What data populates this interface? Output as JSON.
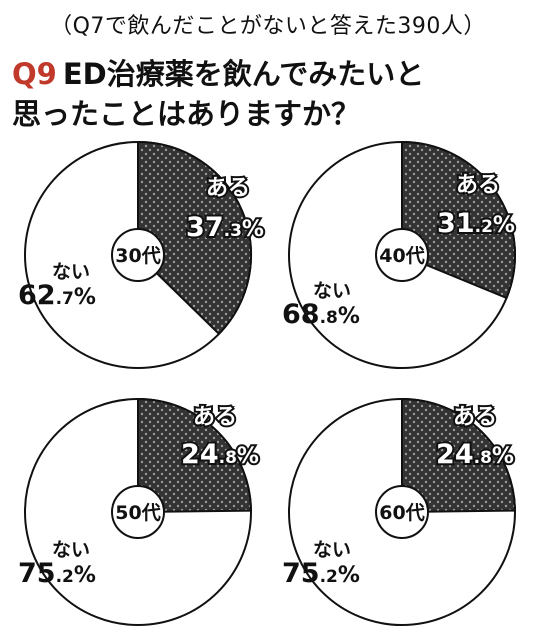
{
  "subtitle": "（Q7で飲んだことがないと答えた390人）",
  "question": {
    "number": "Q9",
    "line1": "ED治療薬を飲んでみたいと",
    "line2": "思ったことはありますか？"
  },
  "chart_data": [
    {
      "type": "pie",
      "group": "30代",
      "labels": [
        "ある",
        "ない"
      ],
      "values": [
        37.3,
        62.7
      ],
      "display": [
        "37.3%",
        "62.7%"
      ]
    },
    {
      "type": "pie",
      "group": "40代",
      "labels": [
        "ある",
        "ない"
      ],
      "values": [
        31.2,
        68.8
      ],
      "display": [
        "31.2%",
        "68.8%"
      ]
    },
    {
      "type": "pie",
      "group": "50代",
      "labels": [
        "ある",
        "ない"
      ],
      "values": [
        24.8,
        75.2
      ],
      "display": [
        "24.8%",
        "75.2%"
      ]
    },
    {
      "type": "pie",
      "group": "60代",
      "labels": [
        "ある",
        "ない"
      ],
      "values": [
        24.8,
        75.2
      ],
      "display": [
        "24.8%",
        "75.2%"
      ]
    }
  ],
  "colors": {
    "aru_fill": "#333333",
    "nai_fill": "#ffffff",
    "stroke": "#111111",
    "title_accent": "#c0392b"
  }
}
